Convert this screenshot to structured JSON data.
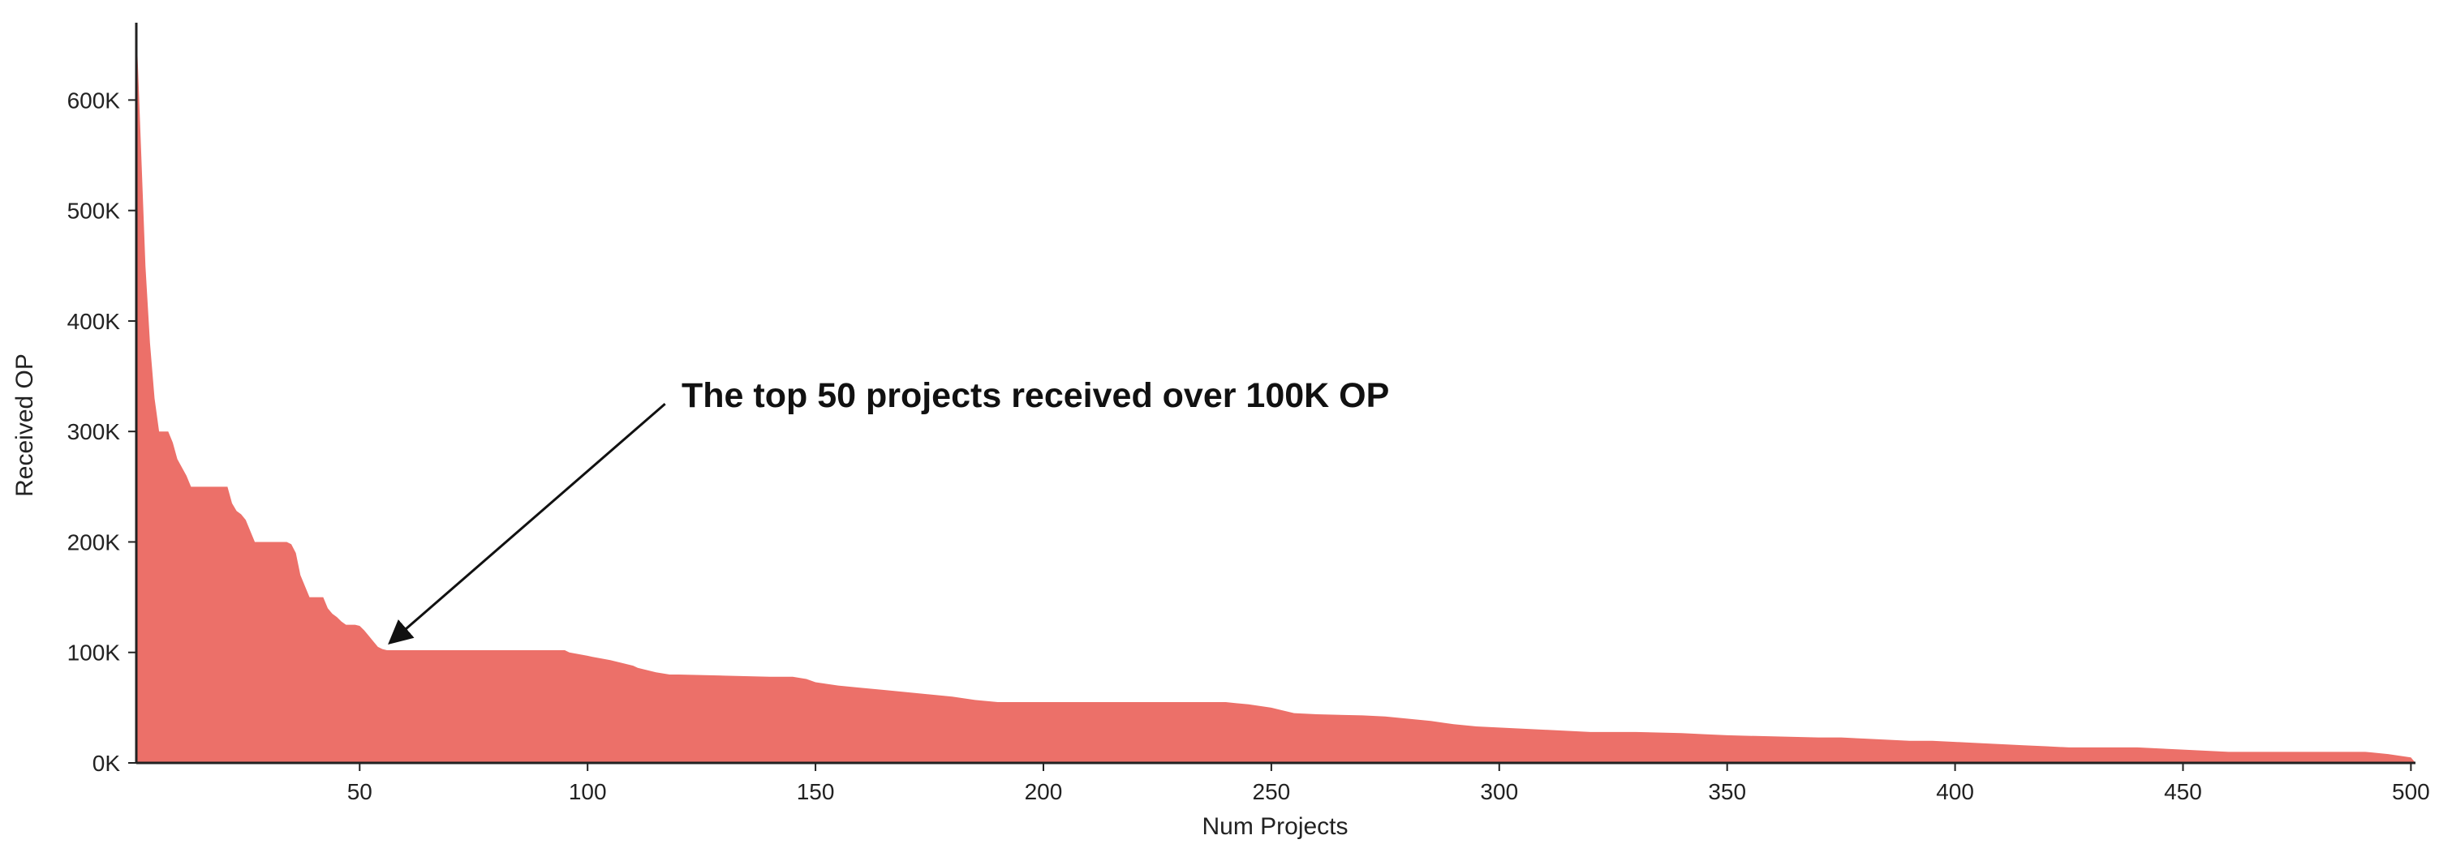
{
  "chart_data": {
    "type": "area",
    "title": "",
    "xlabel": "Num Projects",
    "ylabel": "Received OP",
    "xlim": [
      1,
      501
    ],
    "ylim": [
      0,
      670000
    ],
    "x_ticks": [
      50,
      100,
      150,
      200,
      250,
      300,
      350,
      400,
      450,
      500
    ],
    "x_tick_labels": [
      "50",
      "100",
      "150",
      "200",
      "250",
      "300",
      "350",
      "400",
      "450",
      "500"
    ],
    "y_ticks": [
      0,
      100000,
      200000,
      300000,
      400000,
      500000,
      600000
    ],
    "y_tick_labels": [
      "0K",
      "100K",
      "200K",
      "300K",
      "400K",
      "500K",
      "600K"
    ],
    "grid": false,
    "legend": "none",
    "fill_color": "#EC7069",
    "series": [
      {
        "x": [
          1,
          2,
          3,
          4,
          5,
          6,
          7,
          8,
          9,
          10,
          12,
          13,
          14,
          15,
          16,
          17,
          18,
          19,
          20,
          21,
          22,
          23,
          24,
          25,
          26,
          27,
          28,
          29,
          30,
          31,
          32,
          33,
          34,
          35,
          36,
          37,
          38,
          39,
          40,
          41,
          42,
          43,
          44,
          45,
          46,
          47,
          48,
          49,
          50,
          51,
          52,
          53,
          54,
          55,
          56,
          57,
          58,
          60,
          70,
          80,
          90,
          95,
          96,
          100,
          101,
          105,
          106,
          110,
          111,
          115,
          118,
          120,
          130,
          140,
          145,
          148,
          150,
          155,
          160,
          165,
          170,
          175,
          180,
          185,
          190,
          200,
          210,
          220,
          230,
          240,
          245,
          250,
          252,
          255,
          260,
          270,
          275,
          280,
          285,
          290,
          295,
          300,
          305,
          310,
          320,
          330,
          340,
          345,
          350,
          360,
          370,
          375,
          380,
          385,
          390,
          395,
          400,
          405,
          410,
          415,
          420,
          425,
          430,
          440,
          445,
          450,
          455,
          460,
          470,
          480,
          490,
          495,
          500,
          501
        ],
        "values": [
          670000,
          560000,
          450000,
          380000,
          330000,
          300000,
          300000,
          300000,
          290000,
          275000,
          260000,
          250000,
          250000,
          250000,
          250000,
          250000,
          250000,
          250000,
          250000,
          250000,
          235000,
          228000,
          225000,
          220000,
          210000,
          200000,
          200000,
          200000,
          200000,
          200000,
          200000,
          200000,
          200000,
          198000,
          190000,
          170000,
          160000,
          150000,
          150000,
          150000,
          150000,
          140000,
          135000,
          132000,
          128000,
          125000,
          125000,
          125000,
          124000,
          120000,
          115000,
          110000,
          105000,
          103000,
          102000,
          102000,
          102000,
          102000,
          102000,
          102000,
          102000,
          102000,
          100000,
          97000,
          96000,
          93000,
          92000,
          88000,
          86000,
          82000,
          80000,
          80000,
          79000,
          78000,
          78000,
          76000,
          73000,
          70000,
          68000,
          66000,
          64000,
          62000,
          60000,
          57000,
          55000,
          55000,
          55000,
          55000,
          55000,
          55000,
          53000,
          50000,
          48000,
          45000,
          44000,
          43000,
          42000,
          40000,
          38000,
          35000,
          33000,
          32000,
          31000,
          30000,
          28000,
          28000,
          27000,
          26000,
          25000,
          24000,
          23000,
          23000,
          22000,
          21000,
          20000,
          20000,
          19000,
          18000,
          17000,
          16000,
          15000,
          14000,
          14000,
          14000,
          13000,
          12000,
          11000,
          10000,
          10000,
          10000,
          10000,
          8000,
          5000,
          0
        ]
      }
    ],
    "annotations": [
      {
        "text": "The top 50 projects received over 100K OP",
        "arrow_to": {
          "x": 57,
          "y": 110000
        },
        "arrow_from": {
          "x": 117,
          "y": 325000
        }
      }
    ]
  }
}
